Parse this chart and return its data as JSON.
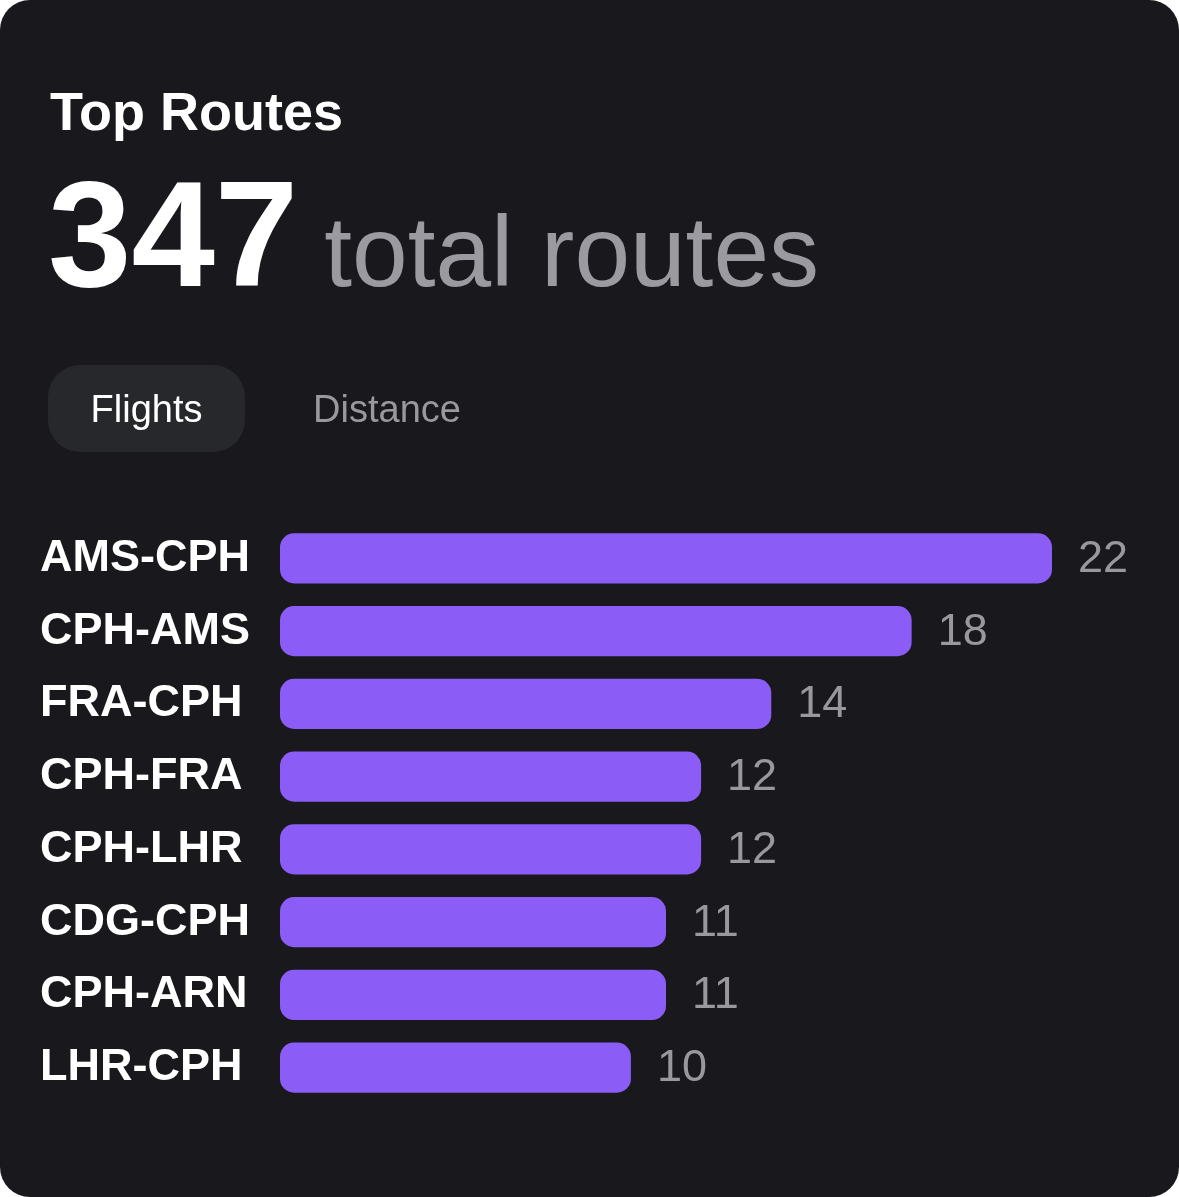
{
  "chart_data": {
    "type": "bar",
    "orientation": "horizontal",
    "title": "Top Routes",
    "subtitle": "347 total routes",
    "annotations": [
      "Flights",
      "Distance"
    ],
    "categories": [
      "AMS-CPH",
      "CPH-AMS",
      "FRA-CPH",
      "CPH-FRA",
      "CPH-LHR",
      "CDG-CPH",
      "CPH-ARN",
      "LHR-CPH"
    ],
    "values": [
      22,
      18,
      14,
      12,
      12,
      11,
      11,
      10
    ],
    "color": "#8b5cf6",
    "xlim": [
      0,
      22
    ],
    "data_labels": true,
    "tick_labels": "y",
    "grid": false,
    "legend": false
  }
}
